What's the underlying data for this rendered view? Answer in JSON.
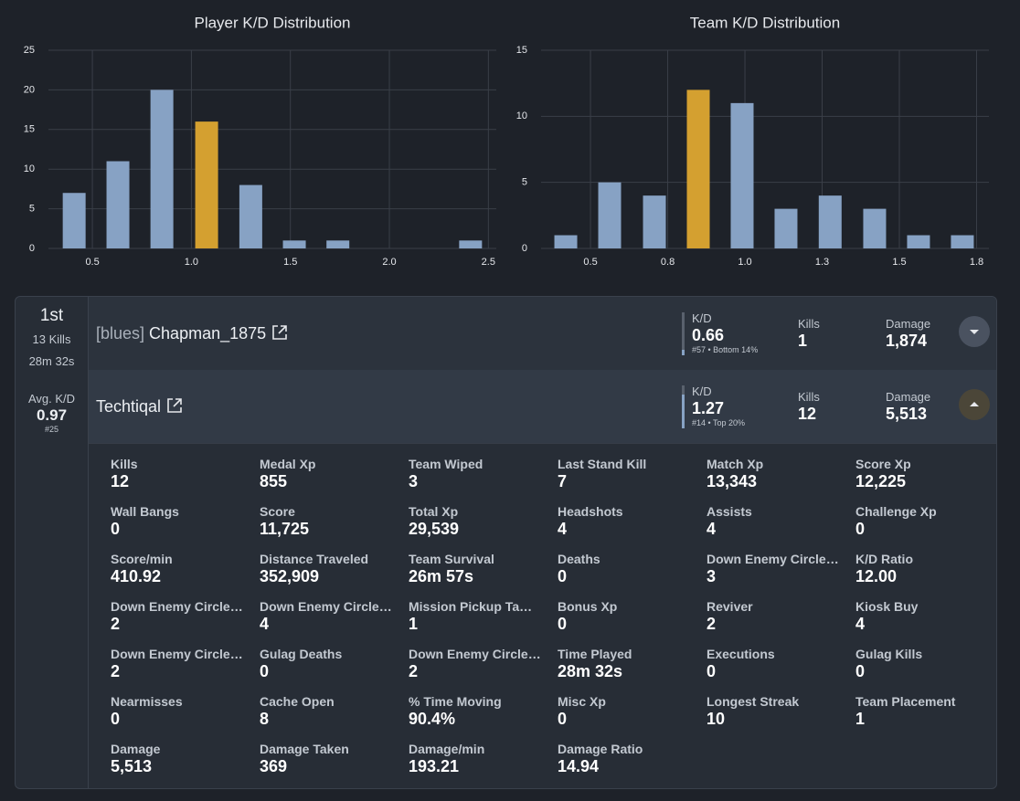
{
  "chart_data": [
    {
      "type": "bar",
      "title": "Player K/D Distribution",
      "x": [
        0.408,
        0.629,
        0.851,
        1.077,
        1.3,
        1.52,
        1.74,
        1.963,
        2.186,
        2.41
      ],
      "values": [
        7,
        11,
        20,
        16,
        8,
        1,
        1,
        0,
        0,
        1
      ],
      "bar_colors": [
        "#87a2c4",
        "#87a2c4",
        "#87a2c4",
        "#d4a030",
        "#87a2c4",
        "#87a2c4",
        "#87a2c4",
        "#87a2c4",
        "#87a2c4",
        "#87a2c4"
      ],
      "xlim": [
        0.278,
        2.54
      ],
      "xticks": [
        0.5,
        {
          "value": 1,
          "label": "1.0"
        },
        1.5,
        {
          "value": 2,
          "label": "2.0"
        },
        2.5
      ],
      "ylim": [
        0,
        25
      ],
      "yticks": [
        0,
        5,
        10,
        15,
        20,
        25
      ],
      "grid": true
    },
    {
      "type": "bar",
      "title": "Team K/D Distribution",
      "x": [
        0.42,
        0.562,
        0.707,
        0.849,
        0.991,
        1.133,
        1.276,
        1.42,
        1.562,
        1.704
      ],
      "values": [
        1,
        5,
        4,
        12,
        11,
        3,
        4,
        3,
        1,
        1
      ],
      "bar_colors": [
        "#87a2c4",
        "#87a2c4",
        "#87a2c4",
        "#d4a030",
        "#87a2c4",
        "#87a2c4",
        "#87a2c4",
        "#87a2c4",
        "#87a2c4",
        "#87a2c4"
      ],
      "xlim": [
        0.34,
        1.79
      ],
      "xticks": [
        0.5,
        {
          "value": 0.75,
          "label": "0.8"
        },
        {
          "value": 1,
          "label": "1.0"
        },
        {
          "value": 1.25,
          "label": "1.3"
        },
        1.5,
        {
          "value": 1.75,
          "label": "1.8"
        }
      ],
      "ylim": [
        0,
        15
      ],
      "yticks": [
        0,
        5,
        10,
        15
      ],
      "grid": true
    }
  ],
  "match": {
    "placement": "1st",
    "kills": "13 Kills",
    "time": "28m 32s",
    "avg_kd_label": "Avg. K/D",
    "avg_kd": "0.97",
    "avg_kd_rank": "#25"
  },
  "players": [
    {
      "tag": "[blues]",
      "name": "Chapman_1875",
      "kd_label": "K/D",
      "kd": "0.66",
      "kd_rank": "#57 • Bottom 14%",
      "kills_label": "Kills",
      "kills": "1",
      "damage_label": "Damage",
      "damage": "1,874"
    },
    {
      "name": "Techtiqal",
      "kd_label": "K/D",
      "kd": "1.27",
      "kd_rank": "#14 • Top 20%",
      "kills_label": "Kills",
      "kills": "12",
      "damage_label": "Damage",
      "damage": "5,513"
    }
  ],
  "stats": [
    {
      "label": "Kills",
      "value": "12"
    },
    {
      "label": "Medal Xp",
      "value": "855"
    },
    {
      "label": "Team Wiped",
      "value": "3"
    },
    {
      "label": "Last Stand Kill",
      "value": "7"
    },
    {
      "label": "Match Xp",
      "value": "13,343"
    },
    {
      "label": "Score Xp",
      "value": "12,225"
    },
    {
      "label": "Wall Bangs",
      "value": "0"
    },
    {
      "label": "Score",
      "value": "11,725"
    },
    {
      "label": "Total Xp",
      "value": "29,539"
    },
    {
      "label": "Headshots",
      "value": "4"
    },
    {
      "label": "Assists",
      "value": "4"
    },
    {
      "label": "Challenge Xp",
      "value": "0"
    },
    {
      "label": "Score/min",
      "value": "410.92"
    },
    {
      "label": "Distance Traveled",
      "value": "352,909"
    },
    {
      "label": "Team Survival",
      "value": "26m 57s"
    },
    {
      "label": "Deaths",
      "value": "0"
    },
    {
      "label": "Down Enemy Circle…",
      "value": "3"
    },
    {
      "label": "K/D Ratio",
      "value": "12.00"
    },
    {
      "label": "Down Enemy Circle…",
      "value": "2"
    },
    {
      "label": "Down Enemy Circle…",
      "value": "4"
    },
    {
      "label": "Mission Pickup Ta…",
      "value": "1"
    },
    {
      "label": "Bonus Xp",
      "value": "0"
    },
    {
      "label": "Reviver",
      "value": "2"
    },
    {
      "label": "Kiosk Buy",
      "value": "4"
    },
    {
      "label": "Down Enemy Circle…",
      "value": "2"
    },
    {
      "label": "Gulag Deaths",
      "value": "0"
    },
    {
      "label": "Down Enemy Circle…",
      "value": "2"
    },
    {
      "label": "Time Played",
      "value": "28m 32s"
    },
    {
      "label": "Executions",
      "value": "0"
    },
    {
      "label": "Gulag Kills",
      "value": "0"
    },
    {
      "label": "Nearmisses",
      "value": "0"
    },
    {
      "label": "Cache Open",
      "value": "8"
    },
    {
      "label": "% Time Moving",
      "value": "90.4%"
    },
    {
      "label": "Misc Xp",
      "value": "0"
    },
    {
      "label": "Longest Streak",
      "value": "10"
    },
    {
      "label": "Team Placement",
      "value": "1"
    },
    {
      "label": "Damage",
      "value": "5,513"
    },
    {
      "label": "Damage Taken",
      "value": "369"
    },
    {
      "label": "Damage/min",
      "value": "193.21"
    },
    {
      "label": "Damage Ratio",
      "value": "14.94"
    }
  ]
}
